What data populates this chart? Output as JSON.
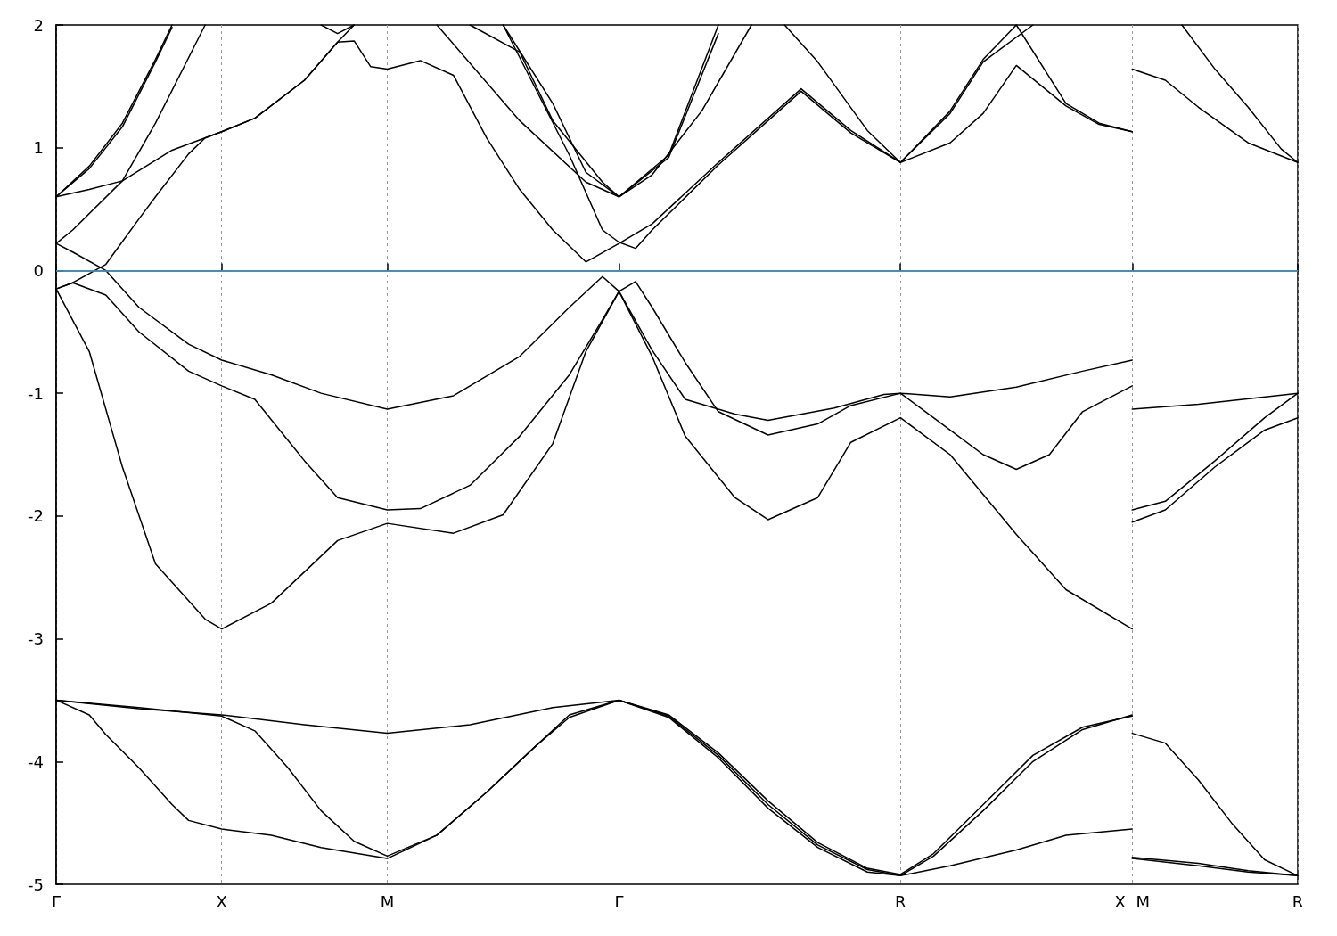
{
  "chart_data": {
    "type": "line",
    "ylim": [
      -5,
      2
    ],
    "categories": [
      "Γ",
      null,
      null,
      null,
      null,
      null,
      null,
      null,
      null,
      null,
      "X",
      null,
      null,
      null,
      null,
      null,
      null,
      null,
      null,
      null,
      "M",
      null,
      null,
      null,
      null,
      null,
      null,
      null,
      null,
      null,
      null,
      null,
      null,
      null,
      "Γ",
      null,
      null,
      null,
      null,
      null,
      null,
      null,
      null,
      null,
      null,
      null,
      null,
      null,
      null,
      null,
      null,
      "R",
      null,
      null,
      null,
      null,
      null,
      null,
      null,
      null,
      null,
      null,
      null,
      null,
      null,
      "X  M",
      null,
      null,
      null,
      null,
      null,
      null,
      null,
      null,
      null,
      "R"
    ],
    "yticks": [
      -5,
      -4,
      -3,
      -2,
      -1,
      0,
      1,
      2
    ],
    "grid": "x",
    "marker": "none",
    "line_style": "solid",
    "ref_lines": [
      {
        "axis": "y",
        "value": 0,
        "color": "#4aa8e0"
      }
    ],
    "series": [
      {
        "color": "#000000",
        "values": [
          -3.5,
          null,
          -3.62,
          -3.78,
          null,
          -4.05,
          null,
          -4.35,
          -4.48,
          null,
          -4.55,
          null,
          null,
          -4.6,
          null,
          null,
          -4.7,
          null,
          null,
          null,
          -4.79,
          null,
          null,
          -4.6,
          null,
          null,
          -4.25,
          null,
          null,
          -3.87,
          null,
          -3.64,
          null,
          null,
          -3.5,
          null,
          null,
          -3.63,
          null,
          null,
          -3.95,
          null,
          null,
          -4.35,
          null,
          null,
          -4.68,
          null,
          null,
          -4.88,
          null,
          -4.93,
          null,
          null,
          -4.85,
          null,
          null,
          null,
          -4.72,
          null,
          null,
          -4.6,
          null,
          null,
          null,
          -4.55,
          null,
          null,
          null,
          null,
          null,
          null,
          null,
          null,
          null,
          null
        ]
      },
      {
        "color": "#000000",
        "values": [
          null,
          null,
          null,
          null,
          null,
          null,
          null,
          null,
          null,
          null,
          null,
          null,
          null,
          null,
          null,
          null,
          null,
          null,
          null,
          null,
          null,
          null,
          null,
          null,
          null,
          null,
          null,
          null,
          null,
          null,
          null,
          null,
          null,
          null,
          null,
          null,
          null,
          null,
          null,
          null,
          null,
          null,
          null,
          null,
          null,
          null,
          null,
          null,
          null,
          null,
          null,
          null,
          null,
          null,
          null,
          null,
          null,
          null,
          null,
          null,
          null,
          null,
          null,
          null,
          null,
          -4.78,
          null,
          null,
          null,
          -4.83,
          null,
          null,
          -4.89,
          null,
          null,
          -4.93
        ]
      },
      {
        "color": "#000000",
        "values": [
          -3.5,
          null,
          null,
          null,
          null,
          -3.56,
          null,
          null,
          null,
          null,
          -3.63,
          null,
          -3.75,
          null,
          -4.05,
          null,
          -4.4,
          null,
          -4.65,
          null,
          -4.77,
          null,
          null,
          -4.6,
          null,
          null,
          -4.25,
          null,
          null,
          -3.87,
          null,
          -3.62,
          null,
          null,
          -3.5,
          null,
          null,
          -3.62,
          null,
          null,
          -3.93,
          null,
          null,
          -4.32,
          null,
          null,
          -4.66,
          null,
          null,
          -4.87,
          null,
          -4.92,
          null,
          -4.75,
          null,
          null,
          -4.35,
          null,
          null,
          -3.95,
          null,
          null,
          -3.72,
          null,
          null,
          -3.63,
          null,
          null,
          null,
          null,
          null,
          null,
          null,
          null,
          null,
          null
        ]
      },
      {
        "color": "#000000",
        "values": [
          null,
          null,
          null,
          null,
          null,
          null,
          null,
          null,
          null,
          null,
          null,
          null,
          null,
          null,
          null,
          null,
          null,
          null,
          null,
          null,
          null,
          null,
          null,
          null,
          null,
          null,
          null,
          null,
          null,
          null,
          null,
          null,
          null,
          null,
          null,
          null,
          null,
          null,
          null,
          null,
          null,
          null,
          null,
          null,
          null,
          null,
          null,
          null,
          null,
          null,
          null,
          null,
          null,
          null,
          null,
          null,
          null,
          null,
          null,
          null,
          null,
          null,
          null,
          null,
          null,
          -4.79,
          null,
          null,
          null,
          -4.85,
          null,
          null,
          -4.9,
          null,
          null,
          -4.93
        ]
      },
      {
        "color": "#000000",
        "values": [
          -3.5,
          null,
          null,
          null,
          null,
          -3.57,
          null,
          null,
          null,
          null,
          -3.62,
          null,
          null,
          null,
          null,
          -3.7,
          null,
          null,
          null,
          null,
          -3.77,
          null,
          null,
          null,
          null,
          -3.7,
          null,
          null,
          null,
          null,
          -3.56,
          null,
          null,
          null,
          -3.5,
          null,
          null,
          -3.64,
          null,
          null,
          -3.97,
          null,
          null,
          -4.38,
          null,
          null,
          -4.7,
          null,
          null,
          -4.9,
          null,
          -4.93,
          null,
          -4.77,
          null,
          null,
          -4.4,
          null,
          null,
          -4.0,
          null,
          null,
          -3.74,
          null,
          null,
          -3.62,
          null,
          null,
          null,
          null,
          null,
          null,
          null,
          null,
          null,
          null
        ]
      },
      {
        "color": "#000000",
        "values": [
          null,
          null,
          null,
          null,
          null,
          null,
          null,
          null,
          null,
          null,
          null,
          null,
          null,
          null,
          null,
          null,
          null,
          null,
          null,
          null,
          null,
          null,
          null,
          null,
          null,
          null,
          null,
          null,
          null,
          null,
          null,
          null,
          null,
          null,
          null,
          null,
          null,
          null,
          null,
          null,
          null,
          null,
          null,
          null,
          null,
          null,
          null,
          null,
          null,
          null,
          null,
          null,
          null,
          null,
          null,
          null,
          null,
          null,
          null,
          null,
          null,
          null,
          null,
          null,
          null,
          -3.77,
          null,
          -3.85,
          null,
          -4.15,
          null,
          -4.5,
          null,
          -4.8,
          null,
          -4.93
        ]
      },
      {
        "color": "#000000",
        "values": [
          -0.15,
          null,
          -0.66,
          null,
          -1.6,
          null,
          -2.39,
          null,
          null,
          -2.84,
          -2.92,
          null,
          null,
          -2.71,
          null,
          null,
          null,
          -2.2,
          null,
          null,
          -2.06,
          null,
          null,
          null,
          -2.14,
          null,
          null,
          -1.99,
          null,
          null,
          -1.41,
          null,
          -0.66,
          null,
          -0.17,
          null,
          -0.7,
          null,
          -1.35,
          null,
          null,
          -1.85,
          null,
          -2.03,
          null,
          null,
          -1.85,
          null,
          -1.4,
          null,
          null,
          -1.2,
          null,
          null,
          -1.5,
          null,
          null,
          null,
          -2.15,
          null,
          null,
          -2.6,
          null,
          null,
          null,
          -2.92,
          null,
          null,
          null,
          null,
          null,
          null,
          null,
          null,
          null,
          null
        ]
      },
      {
        "color": "#000000",
        "values": [
          null,
          null,
          null,
          null,
          null,
          null,
          null,
          null,
          null,
          null,
          null,
          null,
          null,
          null,
          null,
          null,
          null,
          null,
          null,
          null,
          null,
          null,
          null,
          null,
          null,
          null,
          null,
          null,
          null,
          null,
          null,
          null,
          null,
          null,
          null,
          null,
          null,
          null,
          null,
          null,
          null,
          null,
          null,
          null,
          null,
          null,
          null,
          null,
          null,
          null,
          null,
          null,
          null,
          null,
          null,
          null,
          null,
          null,
          null,
          null,
          null,
          null,
          null,
          null,
          null,
          -2.05,
          null,
          -1.95,
          null,
          null,
          -1.6,
          null,
          null,
          -1.3,
          null,
          -1.2
        ]
      },
      {
        "color": "#000000",
        "values": [
          -0.15,
          -0.1,
          null,
          -0.2,
          null,
          -0.5,
          null,
          null,
          -0.82,
          null,
          -0.94,
          null,
          -1.05,
          null,
          null,
          -1.55,
          null,
          -1.85,
          null,
          null,
          -1.95,
          null,
          -1.94,
          null,
          null,
          -1.75,
          null,
          null,
          -1.35,
          null,
          null,
          -0.85,
          null,
          -0.4,
          -0.17,
          -0.09,
          -0.3,
          null,
          -0.75,
          null,
          -1.15,
          null,
          null,
          -1.34,
          null,
          null,
          -1.25,
          null,
          -1.1,
          null,
          null,
          -1.0,
          null,
          -1.2,
          null,
          null,
          -1.5,
          null,
          -1.62,
          null,
          -1.5,
          null,
          -1.15,
          null,
          null,
          -0.94,
          null,
          null,
          null,
          null,
          null,
          null,
          null,
          null,
          null,
          null
        ]
      },
      {
        "color": "#000000",
        "values": [
          null,
          null,
          null,
          null,
          null,
          null,
          null,
          null,
          null,
          null,
          null,
          null,
          null,
          null,
          null,
          null,
          null,
          null,
          null,
          null,
          null,
          null,
          null,
          null,
          null,
          null,
          null,
          null,
          null,
          null,
          null,
          null,
          null,
          null,
          null,
          null,
          null,
          null,
          null,
          null,
          null,
          null,
          null,
          null,
          null,
          null,
          null,
          null,
          null,
          null,
          null,
          null,
          null,
          null,
          null,
          null,
          null,
          null,
          null,
          null,
          null,
          null,
          null,
          null,
          null,
          -1.95,
          null,
          -1.88,
          null,
          null,
          -1.55,
          null,
          null,
          -1.2,
          null,
          -1.0
        ]
      },
      {
        "color": "#000000",
        "values": [
          0.22,
          0.15,
          null,
          0,
          null,
          -0.3,
          null,
          null,
          -0.6,
          null,
          -0.73,
          null,
          null,
          -0.85,
          null,
          null,
          -1.0,
          null,
          null,
          null,
          -1.13,
          null,
          null,
          null,
          -1.02,
          null,
          null,
          null,
          -0.7,
          null,
          null,
          -0.3,
          null,
          -0.05,
          -0.17,
          null,
          -0.65,
          null,
          -1.05,
          null,
          null,
          -1.17,
          null,
          -1.22,
          null,
          null,
          null,
          -1.12,
          null,
          null,
          -1.01,
          -1.0,
          null,
          null,
          -1.03,
          null,
          null,
          null,
          -0.95,
          null,
          null,
          null,
          -0.82,
          null,
          null,
          -0.73,
          null,
          null,
          null,
          null,
          null,
          null,
          null,
          null,
          null,
          null
        ]
      },
      {
        "color": "#000000",
        "values": [
          null,
          null,
          null,
          null,
          null,
          null,
          null,
          null,
          null,
          null,
          null,
          null,
          null,
          null,
          null,
          null,
          null,
          null,
          null,
          null,
          null,
          null,
          null,
          null,
          null,
          null,
          null,
          null,
          null,
          null,
          null,
          null,
          null,
          null,
          null,
          null,
          null,
          null,
          null,
          null,
          null,
          null,
          null,
          null,
          null,
          null,
          null,
          null,
          null,
          null,
          null,
          null,
          null,
          null,
          null,
          null,
          null,
          null,
          null,
          null,
          null,
          null,
          null,
          null,
          null,
          -1.13,
          null,
          null,
          null,
          -1.09,
          null,
          null,
          null,
          null,
          null,
          -1.0
        ]
      },
      {
        "color": "#000000",
        "values": [
          -0.15,
          -0.1,
          null,
          0.05,
          null,
          0.42,
          0.6,
          null,
          0.95,
          1.08,
          1.13,
          null,
          1.24,
          null,
          null,
          1.55,
          null,
          1.86,
          2,
          null,
          null,
          null,
          null,
          null,
          null,
          null,
          null,
          null,
          null,
          null,
          null,
          null,
          null,
          null,
          null,
          null,
          null,
          null,
          null,
          null,
          null,
          null,
          null,
          null,
          null,
          null,
          null,
          null,
          null,
          null,
          null,
          null,
          null,
          null,
          null,
          null,
          null,
          null,
          null,
          null,
          null,
          null,
          null,
          null,
          null,
          null,
          null,
          null,
          null,
          null,
          null,
          null,
          null,
          null,
          null,
          null
        ]
      },
      {
        "color": "#000000",
        "values": [
          0.22,
          0.33,
          null,
          null,
          0.73,
          null,
          1.2,
          null,
          null,
          2,
          null,
          null,
          null,
          null,
          null,
          null,
          null,
          null,
          null,
          null,
          null,
          null,
          null,
          null,
          null,
          null,
          null,
          null,
          null,
          null,
          null,
          null,
          null,
          null,
          null,
          null,
          null,
          null,
          null,
          null,
          null,
          null,
          null,
          null,
          null,
          null,
          null,
          null,
          null,
          null,
          null,
          null,
          null,
          null,
          null,
          null,
          null,
          null,
          null,
          null,
          null,
          null,
          null,
          null,
          null,
          null,
          null,
          null,
          null,
          null,
          null,
          null,
          null,
          null,
          null,
          null
        ]
      },
      {
        "color": "#000000",
        "values": [
          0.6,
          null,
          0.66,
          null,
          0.73,
          null,
          null,
          0.98,
          null,
          null,
          1.13,
          null,
          1.24,
          null,
          null,
          1.55,
          null,
          1.86,
          1.87,
          1.66,
          1.64,
          null,
          1.71,
          null,
          1.59,
          null,
          1.08,
          null,
          0.66,
          null,
          0.33,
          null,
          0.07,
          null,
          0.22,
          null,
          0.38,
          null,
          null,
          null,
          0.88,
          null,
          null,
          null,
          null,
          1.48,
          null,
          null,
          1.14,
          null,
          null,
          0.88,
          null,
          null,
          1.04,
          null,
          1.28,
          null,
          1.67,
          null,
          null,
          1.34,
          null,
          1.19,
          null,
          1.13,
          null,
          null,
          null,
          null,
          null,
          null,
          null,
          null,
          null,
          null
        ]
      },
      {
        "color": "#000000",
        "values": [
          null,
          null,
          null,
          null,
          null,
          null,
          null,
          null,
          null,
          null,
          null,
          null,
          null,
          null,
          null,
          null,
          null,
          null,
          null,
          null,
          null,
          null,
          null,
          null,
          null,
          null,
          null,
          null,
          null,
          null,
          null,
          null,
          null,
          null,
          null,
          null,
          null,
          null,
          null,
          null,
          null,
          null,
          null,
          null,
          null,
          null,
          null,
          null,
          null,
          null,
          null,
          null,
          null,
          null,
          null,
          null,
          null,
          null,
          null,
          null,
          null,
          null,
          null,
          null,
          null,
          1.64,
          null,
          1.55,
          null,
          1.33,
          null,
          null,
          1.04,
          null,
          null,
          0.88
        ]
      },
      {
        "color": "#000000",
        "values": [
          0.6,
          null,
          0.85,
          null,
          1.2,
          null,
          1.72,
          2,
          null,
          null,
          null,
          null,
          null,
          null,
          null,
          null,
          null,
          null,
          null,
          null,
          null,
          null,
          null,
          null,
          null,
          null,
          null,
          null,
          null,
          null,
          null,
          null,
          null,
          null,
          null,
          null,
          null,
          null,
          null,
          null,
          null,
          null,
          null,
          null,
          null,
          null,
          null,
          null,
          null,
          null,
          null,
          null,
          null,
          null,
          null,
          null,
          null,
          null,
          null,
          null,
          null,
          null,
          null,
          null,
          null,
          null,
          null,
          null,
          null,
          null,
          null,
          null,
          null,
          null,
          null,
          null
        ]
      },
      {
        "color": "#000000",
        "values": [
          0.6,
          null,
          0.83,
          null,
          1.17,
          null,
          1.7,
          1.98,
          null,
          null,
          null,
          null,
          null,
          null,
          null,
          null,
          null,
          null,
          null,
          null,
          null,
          null,
          null,
          null,
          null,
          null,
          null,
          null,
          null,
          null,
          null,
          null,
          null,
          null,
          null,
          null,
          null,
          null,
          null,
          null,
          null,
          null,
          null,
          null,
          null,
          null,
          null,
          null,
          null,
          null,
          null,
          null,
          null,
          null,
          null,
          null,
          null,
          null,
          null,
          null,
          null,
          null,
          null,
          null,
          null,
          null,
          null,
          null,
          null,
          null,
          null,
          null,
          null,
          null,
          null,
          null
        ]
      },
      {
        "color": "#000000",
        "values": [
          null,
          null,
          null,
          null,
          null,
          null,
          null,
          null,
          null,
          null,
          null,
          null,
          null,
          null,
          null,
          null,
          2,
          1.93,
          2,
          null,
          null,
          null,
          null,
          null,
          null,
          null,
          null,
          null,
          null,
          null,
          null,
          null,
          null,
          null,
          null,
          null,
          null,
          null,
          null,
          null,
          null,
          null,
          null,
          null,
          null,
          null,
          null,
          null,
          null,
          null,
          null,
          null,
          null,
          null,
          null,
          null,
          null,
          null,
          null,
          null,
          null,
          null,
          null,
          null,
          null,
          null,
          null,
          null,
          null,
          null,
          null,
          null,
          null,
          null,
          null,
          null
        ]
      },
      {
        "color": "#000000",
        "values": [
          null,
          null,
          null,
          null,
          null,
          null,
          null,
          null,
          null,
          null,
          null,
          null,
          null,
          null,
          null,
          null,
          null,
          null,
          null,
          null,
          null,
          null,
          null,
          2,
          null,
          null,
          null,
          null,
          1.22,
          null,
          null,
          null,
          0.72,
          null,
          0.6,
          null,
          null,
          0.94,
          null,
          null,
          2,
          null,
          null,
          null,
          null,
          null,
          null,
          null,
          null,
          null,
          null,
          null,
          null,
          null,
          null,
          null,
          null,
          null,
          null,
          null,
          null,
          null,
          null,
          null,
          null,
          null,
          null,
          null,
          null,
          null,
          null,
          null,
          null,
          null,
          null,
          null
        ]
      },
      {
        "color": "#000000",
        "values": [
          null,
          null,
          null,
          null,
          null,
          null,
          null,
          null,
          null,
          null,
          null,
          null,
          null,
          null,
          null,
          null,
          null,
          null,
          null,
          null,
          null,
          null,
          null,
          null,
          null,
          2,
          null,
          null,
          1.78,
          null,
          1.22,
          null,
          null,
          0.72,
          0.6,
          null,
          null,
          0.92,
          null,
          null,
          1.93,
          null,
          null,
          null,
          null,
          null,
          null,
          null,
          null,
          null,
          null,
          null,
          null,
          null,
          null,
          null,
          null,
          null,
          null,
          null,
          null,
          null,
          null,
          null,
          null,
          null,
          null,
          null,
          null,
          null,
          null,
          null,
          null,
          null,
          null,
          null
        ]
      },
      {
        "color": "#000000",
        "values": [
          null,
          null,
          null,
          null,
          null,
          null,
          null,
          null,
          null,
          null,
          null,
          null,
          null,
          null,
          null,
          null,
          null,
          null,
          null,
          null,
          null,
          null,
          null,
          null,
          null,
          null,
          null,
          2,
          null,
          null,
          1.36,
          null,
          0.8,
          null,
          0.6,
          null,
          0.78,
          null,
          null,
          1.3,
          null,
          null,
          2,
          null,
          null,
          null,
          null,
          null,
          null,
          null,
          null,
          null,
          null,
          null,
          null,
          null,
          null,
          null,
          null,
          null,
          null,
          null,
          null,
          null,
          null,
          null,
          null,
          null,
          null,
          null,
          null,
          null,
          null,
          null,
          null,
          null
        ]
      },
      {
        "color": "#000000",
        "values": [
          null,
          null,
          null,
          null,
          null,
          null,
          null,
          null,
          null,
          null,
          null,
          null,
          null,
          null,
          null,
          null,
          null,
          null,
          null,
          null,
          null,
          null,
          null,
          null,
          null,
          null,
          null,
          2,
          null,
          null,
          null,
          0.94,
          null,
          0.33,
          0.23,
          0.18,
          0.33,
          null,
          null,
          null,
          0.86,
          null,
          null,
          null,
          null,
          1.46,
          null,
          null,
          1.12,
          null,
          null,
          0.88,
          null,
          null,
          1.28,
          null,
          1.7,
          null,
          null,
          2,
          null,
          null,
          null,
          null,
          null,
          null,
          null,
          null,
          null,
          null,
          null,
          null,
          null,
          null,
          null,
          null
        ]
      },
      {
        "color": "#000000",
        "values": [
          null,
          null,
          null,
          null,
          null,
          null,
          null,
          null,
          null,
          null,
          null,
          null,
          null,
          null,
          null,
          null,
          null,
          null,
          null,
          null,
          null,
          null,
          null,
          null,
          null,
          null,
          null,
          null,
          null,
          null,
          null,
          null,
          null,
          null,
          null,
          null,
          null,
          null,
          null,
          null,
          null,
          null,
          null,
          null,
          2,
          null,
          1.7,
          null,
          null,
          1.14,
          null,
          0.88,
          null,
          null,
          1.3,
          null,
          1.72,
          null,
          2,
          null,
          null,
          null,
          null,
          null,
          null,
          null,
          null,
          null,
          null,
          null,
          null,
          null,
          null,
          null,
          null,
          null
        ]
      },
      {
        "color": "#000000",
        "values": [
          null,
          null,
          null,
          null,
          null,
          null,
          null,
          null,
          null,
          null,
          null,
          null,
          null,
          null,
          null,
          null,
          null,
          null,
          null,
          null,
          null,
          null,
          null,
          null,
          null,
          null,
          null,
          null,
          null,
          null,
          null,
          null,
          null,
          null,
          null,
          null,
          null,
          null,
          null,
          null,
          null,
          null,
          null,
          null,
          null,
          null,
          null,
          null,
          null,
          null,
          null,
          null,
          null,
          null,
          null,
          null,
          null,
          null,
          2,
          null,
          null,
          1.36,
          null,
          1.2,
          null,
          1.13,
          null,
          null,
          null,
          null,
          null,
          null,
          null,
          null,
          null,
          null
        ]
      },
      {
        "color": "#000000",
        "values": [
          null,
          null,
          null,
          null,
          null,
          null,
          null,
          null,
          null,
          null,
          null,
          null,
          null,
          null,
          null,
          null,
          null,
          null,
          null,
          null,
          null,
          null,
          null,
          null,
          null,
          null,
          null,
          null,
          null,
          null,
          null,
          null,
          null,
          null,
          null,
          null,
          null,
          null,
          null,
          null,
          null,
          null,
          null,
          null,
          null,
          null,
          null,
          null,
          null,
          null,
          null,
          null,
          null,
          null,
          null,
          null,
          null,
          null,
          null,
          null,
          null,
          null,
          null,
          null,
          null,
          null,
          null,
          null,
          2,
          null,
          1.64,
          null,
          1.33,
          null,
          0.99,
          0.88
        ]
      }
    ]
  }
}
